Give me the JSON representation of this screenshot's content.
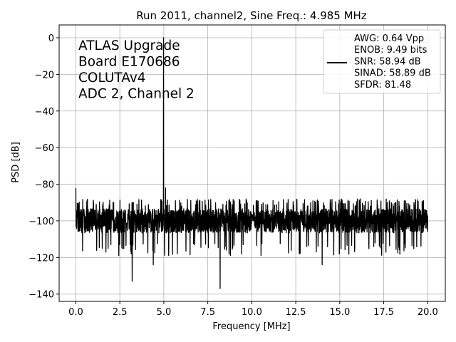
{
  "chart_data": {
    "type": "line",
    "title": "Run 2011, channel2, Sine Freq.: 4.985 MHz",
    "xlabel": "Frequency [MHz]",
    "ylabel": "PSD [dB]",
    "xlim": [
      -0.95,
      21.0
    ],
    "ylim": [
      -144,
      7
    ],
    "xticks": [
      0.0,
      2.5,
      5.0,
      7.5,
      10.0,
      12.5,
      15.0,
      17.5,
      20.0
    ],
    "xtick_labels": [
      "0.0",
      "2.5",
      "5.0",
      "7.5",
      "10.0",
      "12.5",
      "15.0",
      "17.5",
      "20.0"
    ],
    "yticks": [
      0,
      -20,
      -40,
      -60,
      -80,
      -100,
      -120,
      -140
    ],
    "ytick_labels": [
      "0",
      "−20",
      "−40",
      "−60",
      "−80",
      "−100",
      "−120",
      "−140"
    ],
    "grid": true,
    "legend_position": "top-right",
    "line_color": "#000000",
    "annotation": [
      "ATLAS Upgrade",
      " Board E170686",
      "COLUTAv4",
      "ADC 2, Channel 2"
    ],
    "legend_lines": [
      "AWG: 0.64 Vpp",
      "ENOB: 9.49 bits",
      "SNR: 58.94 dB",
      "SINAD: 58.89 dB",
      "SFDR: 81.48"
    ],
    "series": [
      {
        "noise_floor_mean": -100,
        "noise_floor_range": [
          -112,
          -88
        ],
        "peaks": [
          {
            "x": 0.0,
            "y": -82
          },
          {
            "x": 4.985,
            "y": 0
          },
          {
            "x": 5.1,
            "y": -82
          }
        ],
        "dips": [
          {
            "x": 3.2,
            "y": -133
          },
          {
            "x": 4.4,
            "y": -124
          },
          {
            "x": 8.2,
            "y": -137
          },
          {
            "x": 14.0,
            "y": -124
          }
        ]
      }
    ]
  }
}
